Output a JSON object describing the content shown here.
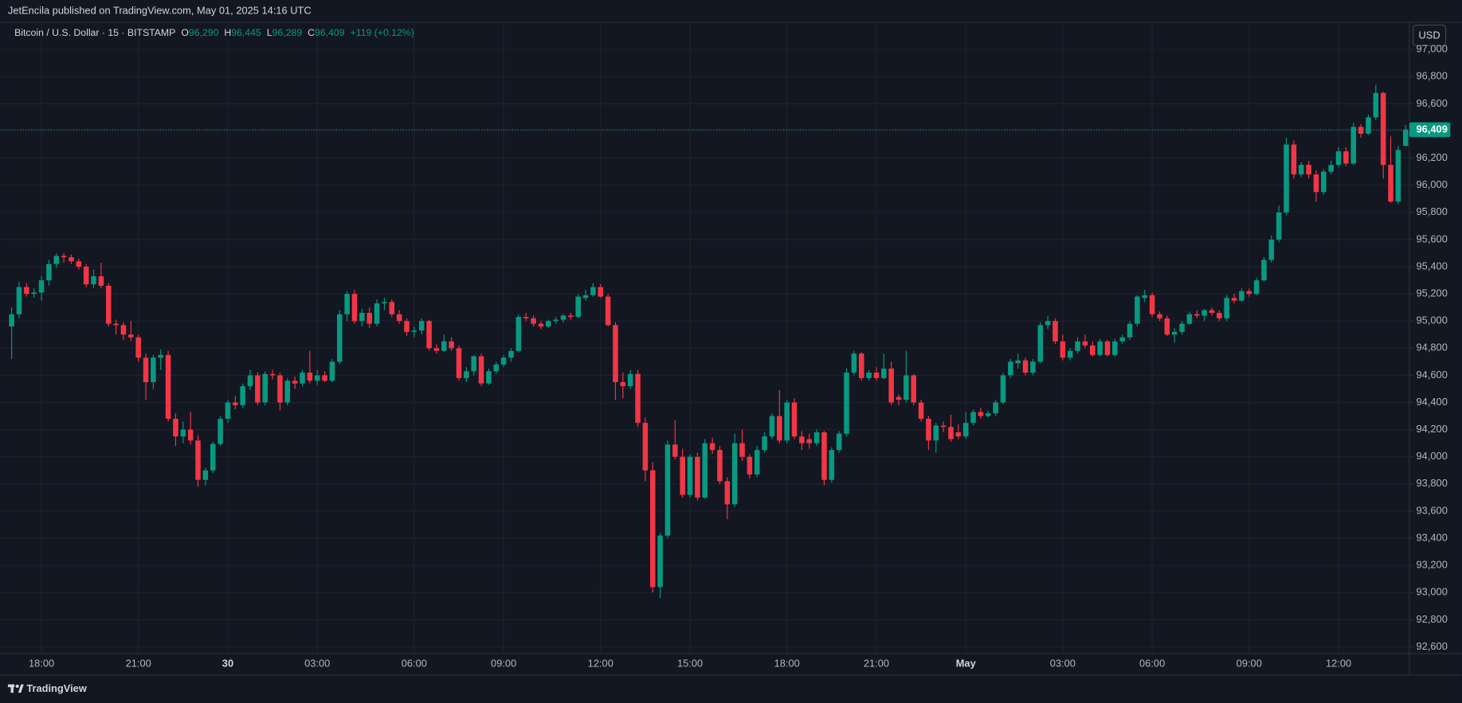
{
  "header": {
    "title": "JetEncila published on TradingView.com, May 01, 2025 14:16 UTC"
  },
  "chart_data": {
    "type": "candlestick",
    "symbol": "Bitcoin / U.S. Dollar · 15 · BITSTAMP",
    "ohlc": [
      {
        "key": "O",
        "value": 96290,
        "label": "96,290"
      },
      {
        "key": "H",
        "value": 96445,
        "label": "96,445"
      },
      {
        "key": "L",
        "value": 96289,
        "label": "96,289"
      },
      {
        "key": "C",
        "value": 96409,
        "label": "96,409"
      }
    ],
    "change": "+119 (+0.12%)",
    "currency": "USD",
    "up_color": "#089981",
    "down_color": "#f23645",
    "grid": true,
    "categories": [
      null,
      null,
      null,
      null,
      "18:00",
      null,
      null,
      null,
      null,
      null,
      null,
      null,
      null,
      null,
      null,
      null,
      null,
      "21:00",
      null,
      null,
      null,
      null,
      null,
      null,
      null,
      null,
      null,
      null,
      null,
      "30",
      null,
      null,
      null,
      null,
      null,
      null,
      null,
      null,
      null,
      null,
      null,
      "03:00",
      null,
      null,
      null,
      null,
      null,
      null,
      null,
      null,
      null,
      null,
      null,
      null,
      "06:00",
      null,
      null,
      null,
      null,
      null,
      null,
      null,
      null,
      null,
      null,
      null,
      "09:00",
      null,
      null,
      null,
      null,
      null,
      null,
      null,
      null,
      null,
      null,
      null,
      null,
      "12:00",
      null,
      null,
      null,
      null,
      null,
      null,
      null,
      null,
      null,
      null,
      null,
      "15:00",
      null,
      null,
      null,
      null,
      null,
      null,
      null,
      null,
      null,
      null,
      null,
      null,
      "18:00",
      null,
      null,
      null,
      null,
      null,
      null,
      null,
      null,
      null,
      null,
      null,
      "21:00",
      null,
      null,
      null,
      null,
      null,
      null,
      null,
      null,
      null,
      null,
      null,
      "May",
      null,
      null,
      null,
      null,
      null,
      null,
      null,
      null,
      null,
      null,
      null,
      null,
      "03:00",
      null,
      null,
      null,
      null,
      null,
      null,
      null,
      null,
      null,
      null,
      null,
      "06:00",
      null,
      null,
      null,
      null,
      null,
      null,
      null,
      null,
      null,
      null,
      null,
      null,
      "09:00",
      null,
      null,
      null,
      null,
      null,
      null,
      null,
      null,
      null,
      null,
      null,
      "12:00",
      null,
      null,
      null,
      null,
      null,
      null,
      null,
      null,
      null
    ],
    "candles": [
      [
        94960,
        95100,
        94720,
        95050
      ],
      [
        95050,
        95290,
        95020,
        95250
      ],
      [
        95250,
        95280,
        95180,
        95200
      ],
      [
        95200,
        95240,
        95170,
        95210
      ],
      [
        95210,
        95330,
        95150,
        95300
      ],
      [
        95300,
        95450,
        95260,
        95420
      ],
      [
        95420,
        95500,
        95390,
        95480
      ],
      [
        95480,
        95500,
        95430,
        95470
      ],
      [
        95470,
        95490,
        95420,
        95440
      ],
      [
        95440,
        95460,
        95380,
        95400
      ],
      [
        95400,
        95420,
        95250,
        95270
      ],
      [
        95270,
        95380,
        95240,
        95330
      ],
      [
        95330,
        95430,
        95240,
        95260
      ],
      [
        95260,
        95280,
        94960,
        94980
      ],
      [
        94980,
        95010,
        94900,
        94970
      ],
      [
        94970,
        94990,
        94860,
        94900
      ],
      [
        94900,
        95000,
        94850,
        94880
      ],
      [
        94880,
        94900,
        94700,
        94730
      ],
      [
        94730,
        94760,
        94420,
        94550
      ],
      [
        94550,
        94750,
        94500,
        94730
      ],
      [
        94730,
        94790,
        94640,
        94750
      ],
      [
        94750,
        94780,
        94260,
        94280
      ],
      [
        94280,
        94320,
        94080,
        94150
      ],
      [
        94150,
        94260,
        94100,
        94200
      ],
      [
        94200,
        94330,
        94090,
        94120
      ],
      [
        94120,
        94160,
        93780,
        93830
      ],
      [
        93830,
        93920,
        93790,
        93900
      ],
      [
        93900,
        94110,
        93880,
        94095
      ],
      [
        94095,
        94300,
        94080,
        94280
      ],
      [
        94280,
        94420,
        94250,
        94400
      ],
      [
        94400,
        94450,
        94350,
        94380
      ],
      [
        94380,
        94540,
        94360,
        94520
      ],
      [
        94520,
        94640,
        94490,
        94600
      ],
      [
        94600,
        94620,
        94380,
        94400
      ],
      [
        94400,
        94630,
        94380,
        94610
      ],
      [
        94610,
        94640,
        94570,
        94600
      ],
      [
        94600,
        94620,
        94340,
        94400
      ],
      [
        94400,
        94580,
        94380,
        94560
      ],
      [
        94560,
        94590,
        94500,
        94540
      ],
      [
        94540,
        94640,
        94520,
        94620
      ],
      [
        94620,
        94780,
        94540,
        94560
      ],
      [
        94560,
        94640,
        94530,
        94600
      ],
      [
        94600,
        94630,
        94550,
        94560
      ],
      [
        94560,
        94720,
        94550,
        94700
      ],
      [
        94700,
        95080,
        94680,
        95050
      ],
      [
        95050,
        95220,
        95000,
        95200
      ],
      [
        95200,
        95230,
        94980,
        95000
      ],
      [
        95000,
        95090,
        94960,
        95060
      ],
      [
        95060,
        95100,
        94950,
        94980
      ],
      [
        94980,
        95160,
        94960,
        95130
      ],
      [
        95130,
        95170,
        95080,
        95140
      ],
      [
        95140,
        95160,
        95030,
        95050
      ],
      [
        95050,
        95080,
        94980,
        95000
      ],
      [
        95000,
        95020,
        94890,
        94920
      ],
      [
        94920,
        94960,
        94880,
        94930
      ],
      [
        94930,
        95020,
        94900,
        95000
      ],
      [
        95000,
        95010,
        94780,
        94800
      ],
      [
        94800,
        94830,
        94760,
        94780
      ],
      [
        94780,
        94900,
        94770,
        94850
      ],
      [
        94850,
        94880,
        94780,
        94800
      ],
      [
        94800,
        94820,
        94560,
        94580
      ],
      [
        94580,
        94660,
        94550,
        94630
      ],
      [
        94630,
        94750,
        94600,
        94740
      ],
      [
        94740,
        94760,
        94520,
        94540
      ],
      [
        94540,
        94650,
        94530,
        94630
      ],
      [
        94630,
        94700,
        94610,
        94680
      ],
      [
        94680,
        94750,
        94660,
        94730
      ],
      [
        94730,
        94800,
        94700,
        94780
      ],
      [
        94780,
        95050,
        94770,
        95030
      ],
      [
        95030,
        95060,
        95000,
        95020
      ],
      [
        95020,
        95040,
        94960,
        94980
      ],
      [
        94980,
        95000,
        94940,
        94960
      ],
      [
        94960,
        95010,
        94950,
        95000
      ],
      [
        95000,
        95030,
        94980,
        95010
      ],
      [
        95010,
        95050,
        94990,
        95040
      ],
      [
        95040,
        95060,
        95010,
        95030
      ],
      [
        95030,
        95200,
        95020,
        95180
      ],
      [
        95170,
        95230,
        95150,
        95190
      ],
      [
        95190,
        95280,
        95180,
        95250
      ],
      [
        95250,
        95270,
        95170,
        95180
      ],
      [
        95180,
        95200,
        94960,
        94970
      ],
      [
        94970,
        94990,
        94420,
        94550
      ],
      [
        94550,
        94620,
        94430,
        94520
      ],
      [
        94520,
        94640,
        94500,
        94610
      ],
      [
        94610,
        94640,
        94220,
        94250
      ],
      [
        94250,
        94290,
        93820,
        93900
      ],
      [
        93900,
        93960,
        93000,
        93040
      ],
      [
        93040,
        93440,
        92960,
        93420
      ],
      [
        93420,
        94120,
        93400,
        94090
      ],
      [
        94090,
        94270,
        93980,
        94000
      ],
      [
        94000,
        94060,
        93700,
        93720
      ],
      [
        93720,
        94020,
        93700,
        94000
      ],
      [
        94000,
        94030,
        93680,
        93700
      ],
      [
        93700,
        94130,
        93690,
        94100
      ],
      [
        94100,
        94140,
        94020,
        94050
      ],
      [
        94050,
        94080,
        93800,
        93820
      ],
      [
        93820,
        93850,
        93540,
        93650
      ],
      [
        93650,
        94170,
        93630,
        94100
      ],
      [
        94100,
        94200,
        93970,
        94000
      ],
      [
        94000,
        94020,
        93840,
        93870
      ],
      [
        93870,
        94080,
        93850,
        94050
      ],
      [
        94050,
        94180,
        94030,
        94150
      ],
      [
        94150,
        94320,
        94130,
        94300
      ],
      [
        94300,
        94490,
        94100,
        94120
      ],
      [
        94120,
        94420,
        94100,
        94400
      ],
      [
        94400,
        94430,
        94130,
        94150
      ],
      [
        94150,
        94190,
        94050,
        94100
      ],
      [
        94130,
        94170,
        94060,
        94100
      ],
      [
        94100,
        94200,
        94080,
        94180
      ],
      [
        94180,
        94190,
        93790,
        93830
      ],
      [
        93830,
        94070,
        93810,
        94050
      ],
      [
        94050,
        94190,
        94030,
        94170
      ],
      [
        94170,
        94650,
        94150,
        94620
      ],
      [
        94620,
        94780,
        94600,
        94760
      ],
      [
        94760,
        94770,
        94560,
        94580
      ],
      [
        94580,
        94640,
        94560,
        94620
      ],
      [
        94620,
        94660,
        94560,
        94580
      ],
      [
        94580,
        94760,
        94570,
        94650
      ],
      [
        94650,
        94700,
        94380,
        94400
      ],
      [
        94440,
        94460,
        94380,
        94420
      ],
      [
        94420,
        94780,
        94400,
        94600
      ],
      [
        94600,
        94610,
        94380,
        94400
      ],
      [
        94400,
        94420,
        94260,
        94280
      ],
      [
        94280,
        94300,
        94050,
        94120
      ],
      [
        94120,
        94250,
        94030,
        94230
      ],
      [
        94230,
        94260,
        94180,
        94220
      ],
      [
        94220,
        94310,
        94110,
        94130
      ],
      [
        94180,
        94240,
        94130,
        94150
      ],
      [
        94150,
        94330,
        94130,
        94250
      ],
      [
        94250,
        94350,
        94230,
        94330
      ],
      [
        94330,
        94360,
        94280,
        94300
      ],
      [
        94300,
        94340,
        94290,
        94320
      ],
      [
        94320,
        94420,
        94300,
        94400
      ],
      [
        94400,
        94620,
        94390,
        94600
      ],
      [
        94600,
        94720,
        94580,
        94700
      ],
      [
        94690,
        94760,
        94650,
        94710
      ],
      [
        94710,
        94730,
        94600,
        94620
      ],
      [
        94620,
        94720,
        94600,
        94700
      ],
      [
        94700,
        94990,
        94690,
        94970
      ],
      [
        94970,
        95040,
        94940,
        95000
      ],
      [
        95000,
        95020,
        94830,
        94850
      ],
      [
        94850,
        94900,
        94710,
        94730
      ],
      [
        94730,
        94800,
        94710,
        94780
      ],
      [
        94780,
        94880,
        94760,
        94850
      ],
      [
        94850,
        94900,
        94800,
        94820
      ],
      [
        94820,
        94850,
        94740,
        94750
      ],
      [
        94750,
        94870,
        94740,
        94850
      ],
      [
        94850,
        94860,
        94740,
        94750
      ],
      [
        94750,
        94870,
        94740,
        94850
      ],
      [
        94850,
        94900,
        94830,
        94880
      ],
      [
        94880,
        95000,
        94860,
        94980
      ],
      [
        94980,
        95190,
        94960,
        95180
      ],
      [
        95170,
        95230,
        95140,
        95190
      ],
      [
        95190,
        95210,
        95030,
        95050
      ],
      [
        95050,
        95070,
        95000,
        95020
      ],
      [
        95020,
        95040,
        94890,
        94900
      ],
      [
        94900,
        94950,
        94840,
        94920
      ],
      [
        94920,
        95000,
        94900,
        94980
      ],
      [
        94980,
        95070,
        94970,
        95050
      ],
      [
        95050,
        95080,
        95020,
        95040
      ],
      [
        95040,
        95090,
        95000,
        95080
      ],
      [
        95080,
        95100,
        95040,
        95060
      ],
      [
        95060,
        95080,
        95000,
        95020
      ],
      [
        95020,
        95190,
        95000,
        95170
      ],
      [
        95170,
        95200,
        95130,
        95150
      ],
      [
        95150,
        95240,
        95140,
        95220
      ],
      [
        95220,
        95240,
        95180,
        95200
      ],
      [
        95200,
        95320,
        95190,
        95300
      ],
      [
        95300,
        95470,
        95290,
        95450
      ],
      [
        95450,
        95630,
        95430,
        95600
      ],
      [
        95600,
        95850,
        95580,
        95800
      ],
      [
        95800,
        96350,
        95780,
        96300
      ],
      [
        96300,
        96330,
        96050,
        96080
      ],
      [
        96080,
        96170,
        96060,
        96150
      ],
      [
        96150,
        96180,
        96050,
        96080
      ],
      [
        96080,
        96110,
        95880,
        95950
      ],
      [
        95950,
        96120,
        95930,
        96100
      ],
      [
        96100,
        96180,
        96080,
        96150
      ],
      [
        96150,
        96280,
        96130,
        96250
      ],
      [
        96250,
        96280,
        96140,
        96160
      ],
      [
        96160,
        96460,
        96150,
        96430
      ],
      [
        96430,
        96450,
        96350,
        96380
      ],
      [
        96380,
        96520,
        96370,
        96500
      ],
      [
        96500,
        96740,
        96480,
        96680
      ],
      [
        96680,
        96690,
        96050,
        96150
      ],
      [
        96150,
        96360,
        95870,
        95880
      ],
      [
        95880,
        96290,
        95860,
        96260
      ],
      [
        96290,
        96445,
        96289,
        96409
      ]
    ],
    "ylim": [
      92550,
      97200
    ],
    "yticks": [
      {
        "value": 92600,
        "label": "92,600"
      },
      {
        "value": 92800,
        "label": "92,800"
      },
      {
        "value": 93000,
        "label": "93,000"
      },
      {
        "value": 93200,
        "label": "93,200"
      },
      {
        "value": 93400,
        "label": "93,400"
      },
      {
        "value": 93600,
        "label": "93,600"
      },
      {
        "value": 93800,
        "label": "93,800"
      },
      {
        "value": 94000,
        "label": "94,000"
      },
      {
        "value": 94200,
        "label": "94,200"
      },
      {
        "value": 94400,
        "label": "94,400"
      },
      {
        "value": 94600,
        "label": "94,600"
      },
      {
        "value": 94800,
        "label": "94,800"
      },
      {
        "value": 95000,
        "label": "95,000"
      },
      {
        "value": 95200,
        "label": "95,200"
      },
      {
        "value": 95400,
        "label": "95,400"
      },
      {
        "value": 95600,
        "label": "95,600"
      },
      {
        "value": 95800,
        "label": "95,800"
      },
      {
        "value": 96000,
        "label": "96,000"
      },
      {
        "value": 96200,
        "label": "96,200"
      },
      {
        "value": 96400,
        "label": "96,400"
      },
      {
        "value": 96600,
        "label": "96,600"
      },
      {
        "value": 96800,
        "label": "96,800"
      },
      {
        "value": 97000,
        "label": "97,000"
      }
    ],
    "last_price": {
      "value": 96409,
      "label": "96,409"
    }
  },
  "footer": {
    "brand": "TradingView"
  }
}
